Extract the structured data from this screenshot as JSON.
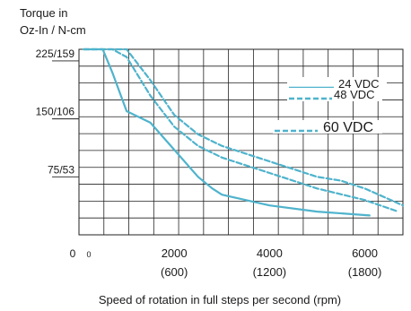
{
  "chart_data": {
    "type": "line",
    "ylabel": "Torque in Oz-In / N-cm",
    "ylabel_lines": [
      "Torque in",
      "Oz-In / N-cm"
    ],
    "xlabel": "Speed of rotation in full steps per second (rpm)",
    "xlim": [
      0,
      6800
    ],
    "ylim": [
      0,
      240
    ],
    "x_ticks": [
      {
        "value": 0,
        "label": "0",
        "sub": "0"
      },
      {
        "value": 2000,
        "label": "2000",
        "sub": "(600)"
      },
      {
        "value": 4000,
        "label": "4000",
        "sub": "(1200)"
      },
      {
        "value": 6000,
        "label": "6000",
        "sub": "(1800)"
      }
    ],
    "y_ticks": [
      {
        "value": 225,
        "label": "225/159"
      },
      {
        "value": 150,
        "label": "150/106"
      },
      {
        "value": 75,
        "label": "75/53"
      }
    ],
    "grid": true,
    "legend": "top-right",
    "series": [
      {
        "name": "24 VDC",
        "style": "solid",
        "color": "#4fb3cc",
        "x": [
          100,
          500,
          700,
          1000,
          1500,
          2000,
          2500,
          2800,
          3000,
          3500,
          4000,
          5000,
          6100
        ],
        "y": [
          240,
          240,
          210,
          160,
          145,
          110,
          75,
          60,
          52,
          45,
          38,
          30,
          25
        ]
      },
      {
        "name": "48 VDC",
        "style": "dashed",
        "color": "#4fb3cc",
        "x": [
          100,
          700,
          1000,
          1500,
          2000,
          2500,
          3000,
          3500,
          4000,
          5000,
          6000,
          6700
        ],
        "y": [
          240,
          240,
          230,
          180,
          140,
          115,
          100,
          90,
          80,
          60,
          45,
          30
        ]
      },
      {
        "name": "60 VDC",
        "style": "dashed",
        "color": "#4fb3cc",
        "x": [
          100,
          1000,
          1500,
          2000,
          2500,
          3000,
          3500,
          4000,
          5000,
          5500,
          6000,
          6800
        ],
        "y": [
          240,
          240,
          200,
          155,
          130,
          115,
          105,
          95,
          75,
          70,
          60,
          38
        ]
      }
    ]
  }
}
